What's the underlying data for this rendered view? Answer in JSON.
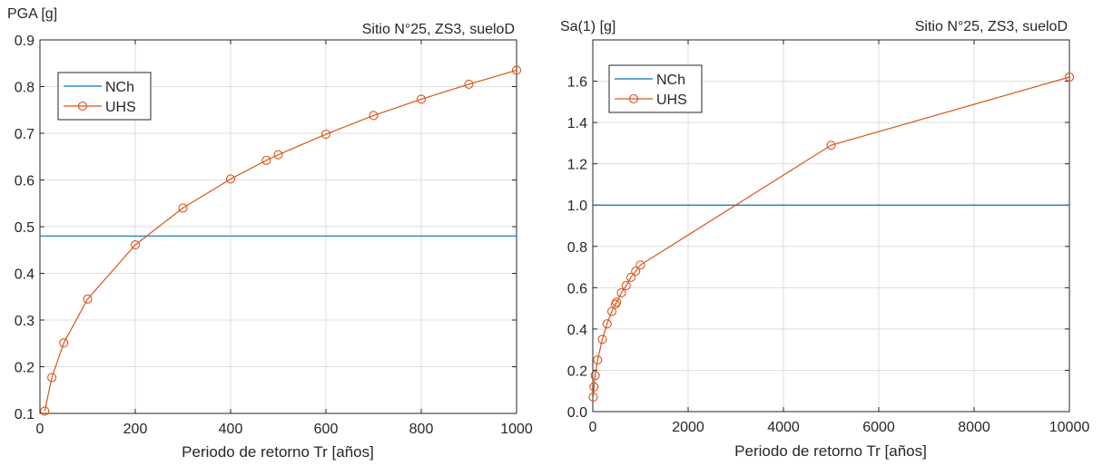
{
  "colors": {
    "nch": "#0072BD",
    "uhs": "#D95319",
    "grid": "#DEDEDE",
    "axis": "#262626"
  },
  "chart_data": [
    {
      "type": "line",
      "title": "Sitio N°25, ZS3, sueloD",
      "ylabel": "PGA [g]",
      "xlabel": "Periodo de retorno Tr [años]",
      "xlim": [
        0,
        1000
      ],
      "ylim": [
        0.1,
        0.9
      ],
      "xticks": [
        0,
        200,
        400,
        600,
        800,
        1000
      ],
      "xtick_labels": [
        "0",
        "200",
        "400",
        "600",
        "800",
        "1000"
      ],
      "yticks": [
        0.1,
        0.2,
        0.3,
        0.4,
        0.5,
        0.6,
        0.7,
        0.8,
        0.9
      ],
      "ytick_labels": [
        "0.1",
        "0.2",
        "0.3",
        "0.4",
        "0.5",
        "0.6",
        "0.7",
        "0.8",
        "0.9"
      ],
      "grid": true,
      "legend_position": "top-left",
      "series": [
        {
          "name": "NCh",
          "style": "line",
          "color": "#0072BD",
          "x": [
            0,
            1000
          ],
          "y": [
            0.48,
            0.48
          ]
        },
        {
          "name": "UHS",
          "style": "line-circle",
          "color": "#D95319",
          "x": [
            10,
            25,
            50,
            100,
            200,
            300,
            400,
            475,
            500,
            600,
            700,
            800,
            900,
            1000
          ],
          "y": [
            0.105,
            0.177,
            0.251,
            0.345,
            0.461,
            0.54,
            0.602,
            0.642,
            0.654,
            0.698,
            0.738,
            0.773,
            0.805,
            0.835
          ]
        }
      ]
    },
    {
      "type": "line",
      "title": "Sitio N°25, ZS3, sueloD",
      "ylabel": "Sa(1) [g]",
      "xlabel": "Periodo de retorno Tr [años]",
      "xlim": [
        0,
        10000
      ],
      "ylim": [
        0,
        1.8
      ],
      "xticks": [
        0,
        2000,
        4000,
        6000,
        8000,
        10000
      ],
      "xtick_labels": [
        "0",
        "2000",
        "4000",
        "6000",
        "8000",
        "10000"
      ],
      "yticks": [
        0,
        0.2,
        0.4,
        0.6,
        0.8,
        1.0,
        1.2,
        1.4,
        1.6
      ],
      "ytick_labels": [
        "0.0",
        "0.2",
        "0.4",
        "0.6",
        "0.8",
        "1.0",
        "1.2",
        "1.4",
        "1.6"
      ],
      "grid": true,
      "legend_position": "top-left",
      "series": [
        {
          "name": "NCh",
          "style": "line",
          "color": "#0072BD",
          "x": [
            0,
            10000
          ],
          "y": [
            1.0,
            1.0
          ]
        },
        {
          "name": "UHS",
          "style": "line-circle",
          "color": "#D95319",
          "x": [
            10,
            25,
            50,
            100,
            200,
            300,
            400,
            475,
            500,
            600,
            700,
            800,
            900,
            1000,
            5000,
            10000
          ],
          "y": [
            0.07,
            0.12,
            0.175,
            0.25,
            0.35,
            0.425,
            0.485,
            0.52,
            0.53,
            0.575,
            0.61,
            0.65,
            0.68,
            0.71,
            1.29,
            1.62
          ]
        }
      ]
    }
  ]
}
